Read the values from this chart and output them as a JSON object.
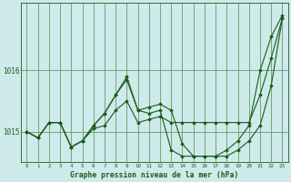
{
  "background_color": "#ceeaea",
  "plot_bg_color": "#ceeaea",
  "grid_color": "#4d8c4d",
  "line_color": "#1a5c1a",
  "marker_color": "#1a5c1a",
  "title": "Graphe pression niveau de la mer (hPa)",
  "xlim": [
    -0.5,
    23.5
  ],
  "ylim": [
    1014.5,
    1017.1
  ],
  "yticks": [
    1015,
    1016
  ],
  "xticks": [
    0,
    1,
    2,
    3,
    4,
    5,
    6,
    7,
    8,
    9,
    10,
    11,
    12,
    13,
    14,
    15,
    16,
    17,
    18,
    19,
    20,
    21,
    22,
    23
  ],
  "series": [
    [
      1015.0,
      1014.9,
      1015.15,
      1015.15,
      1014.75,
      1014.85,
      1015.05,
      1015.1,
      1015.35,
      1015.5,
      1015.15,
      1015.2,
      1015.25,
      1015.15,
      1015.15,
      1015.15,
      1015.15,
      1015.15,
      1015.15,
      1015.15,
      1015.15,
      1015.6,
      1016.2,
      1016.85
    ],
    [
      1015.0,
      1014.9,
      1015.15,
      1015.15,
      1014.75,
      1014.85,
      1015.1,
      1015.3,
      1015.6,
      1015.9,
      1015.35,
      1015.4,
      1015.45,
      1015.35,
      1014.8,
      1014.6,
      1014.6,
      1014.6,
      1014.6,
      1014.7,
      1014.85,
      1015.1,
      1015.75,
      1016.85
    ],
    [
      1015.0,
      1014.9,
      1015.15,
      1015.15,
      1014.75,
      1014.85,
      1015.1,
      1015.3,
      1015.6,
      1015.85,
      1015.35,
      1015.3,
      1015.35,
      1014.7,
      1014.6,
      1014.6,
      1014.6,
      1014.6,
      1014.7,
      1014.85,
      1015.1,
      1016.0,
      1016.55,
      1016.9
    ]
  ]
}
